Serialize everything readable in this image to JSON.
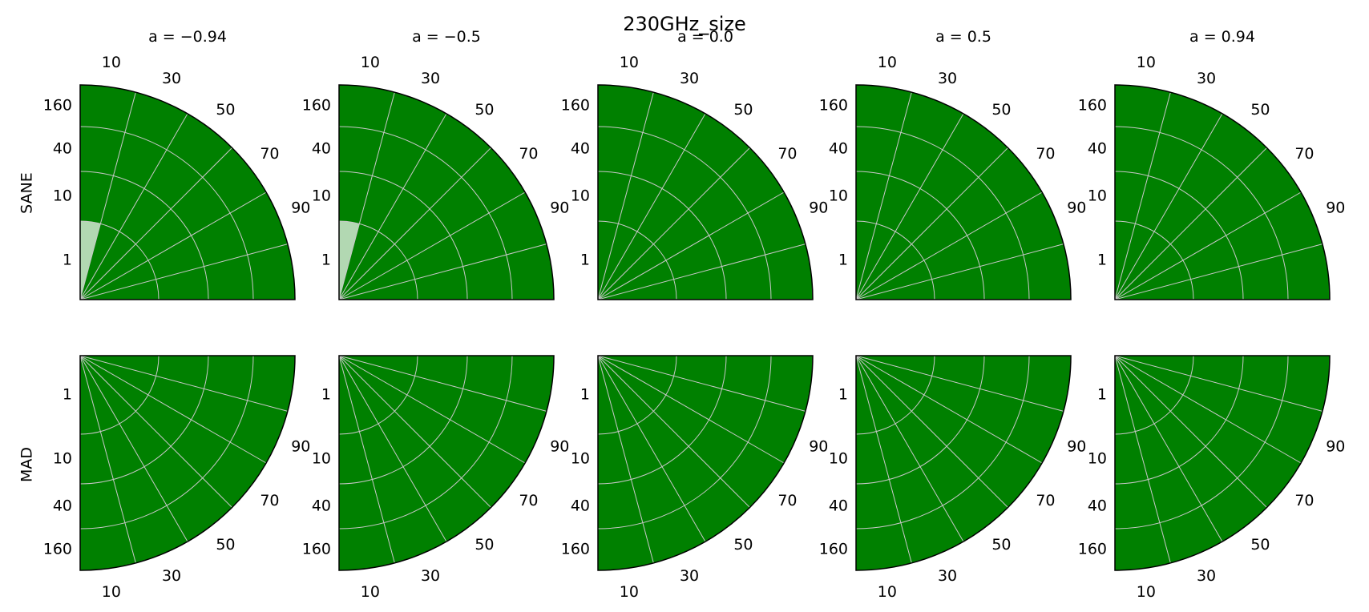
{
  "chart_data": {
    "type": "polar-quarter-grid",
    "title": "230GHz_size",
    "columns": [
      {
        "spin": "-0.94",
        "title": "a = −0.94"
      },
      {
        "spin": "-0.5",
        "title": "a = −0.5"
      },
      {
        "spin": "0.0",
        "title": "a = 0.0"
      },
      {
        "spin": "0.5",
        "title": "a = 0.5"
      },
      {
        "spin": "0.94",
        "title": "a = 0.94"
      }
    ],
    "rows": [
      {
        "label": "SANE",
        "orientation": "up"
      },
      {
        "label": "MAD",
        "orientation": "down"
      }
    ],
    "angle_ticks": [
      "10",
      "30",
      "50",
      "70",
      "90"
    ],
    "radial_ticks": [
      "1",
      "10",
      "40",
      "160"
    ],
    "colors": {
      "fill": "#008000",
      "highlight": "#b2d8b2",
      "grid": "#c8c8c8",
      "edge": "#000000"
    },
    "highlighted_cells": [
      {
        "row": "SANE",
        "column": "-0.94",
        "inclination_bin": [
          "0",
          "10"
        ],
        "rhigh_bin": [
          "1",
          "10"
        ]
      },
      {
        "row": "SANE",
        "column": "-0.5",
        "inclination_bin": [
          "0",
          "10"
        ],
        "rhigh_bin": [
          "1",
          "10"
        ]
      }
    ]
  }
}
